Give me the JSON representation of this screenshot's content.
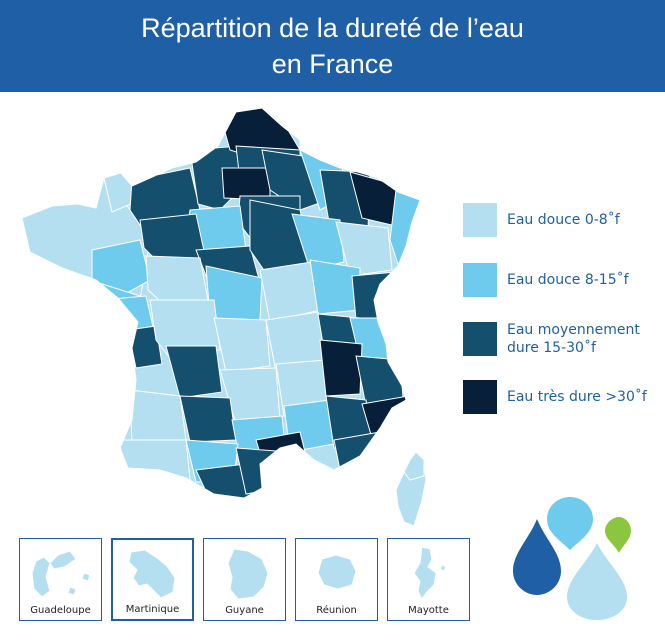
{
  "title": {
    "line1": "Répartition de la dureté de l’eau",
    "line2": "en France"
  },
  "colors": {
    "banner": "#1f5fa6",
    "eau_douce_0_8": "#b3dff0",
    "eau_douce_8_15": "#6ecbee",
    "moyennement_dure": "#144f6d",
    "tres_dure": "#071f38",
    "border": "#ffffff"
  },
  "legend": [
    {
      "label": "Eau douce 0-8˚f",
      "color": "#b3dff0"
    },
    {
      "label": "Eau douce 8-15˚f",
      "color": "#6ecbee"
    },
    {
      "label": "Eau moyennement\ndure 15-30˚f",
      "color": "#144f6d"
    },
    {
      "label": "Eau très dure >30˚f",
      "color": "#071f38"
    }
  ],
  "territories": [
    {
      "name": "Guadeloupe",
      "icon": "guadeloupe-outline"
    },
    {
      "name": "Martinique",
      "icon": "martinique-outline"
    },
    {
      "name": "Guyane",
      "icon": "guyane-outline"
    },
    {
      "name": "Réunion",
      "icon": "reunion-outline"
    },
    {
      "name": "Mayotte",
      "icon": "mayotte-outline"
    }
  ],
  "decoration": {
    "drops": [
      "dark-blue-drop",
      "light-blue-drop",
      "green-drop",
      "pale-blue-drop"
    ]
  }
}
